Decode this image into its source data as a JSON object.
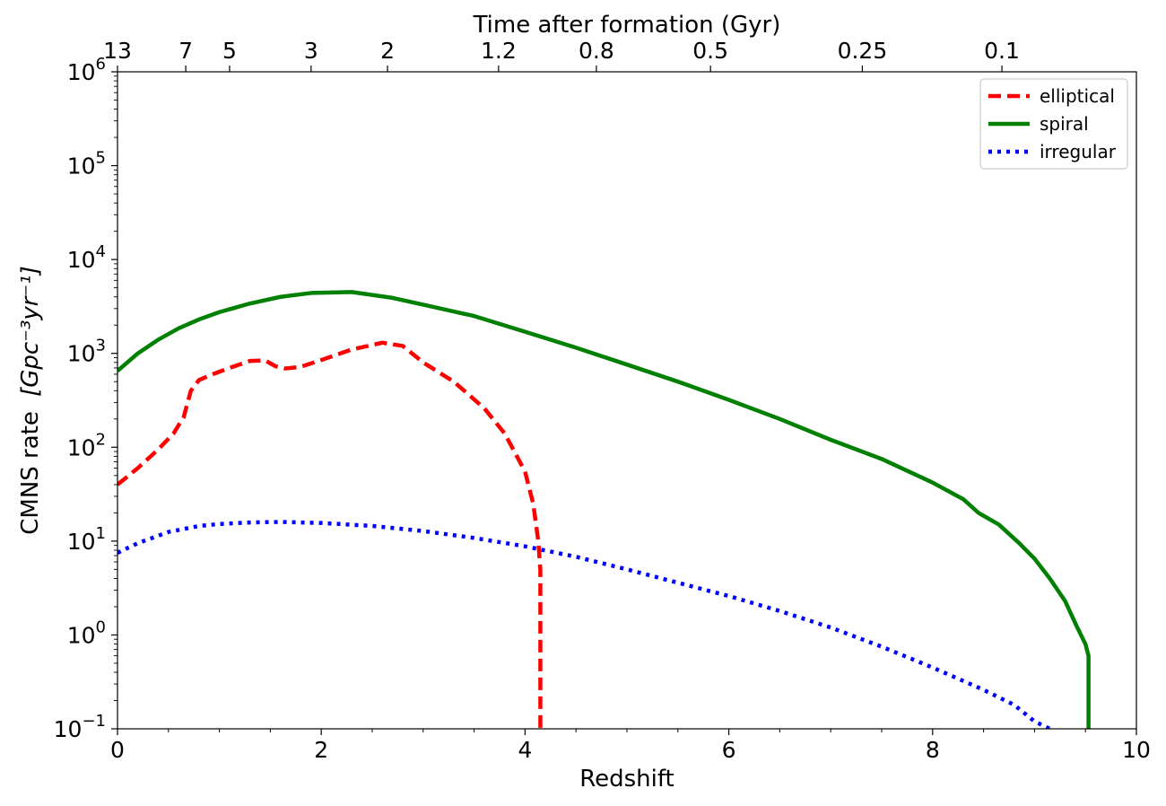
{
  "chart_data": {
    "type": "line",
    "title": "",
    "xlabel": "Redshift",
    "ylabel_prefix": "CMNS rate",
    "ylabel_units": "[Gpc⁻³yr⁻¹]",
    "xlim": [
      0,
      10
    ],
    "ylim_log10": [
      -1,
      6
    ],
    "y_scale": "log",
    "x_ticks": [
      {
        "value": 0,
        "label": "0"
      },
      {
        "value": 2,
        "label": "2"
      },
      {
        "value": 4,
        "label": "4"
      },
      {
        "value": 6,
        "label": "6"
      },
      {
        "value": 8,
        "label": "8"
      },
      {
        "value": 10,
        "label": "10"
      }
    ],
    "y_ticks": [
      {
        "exp": -1,
        "base": "10",
        "power": "−1"
      },
      {
        "exp": 0,
        "base": "10",
        "power": "0"
      },
      {
        "exp": 1,
        "base": "10",
        "power": "1"
      },
      {
        "exp": 2,
        "base": "10",
        "power": "2"
      },
      {
        "exp": 3,
        "base": "10",
        "power": "3"
      },
      {
        "exp": 4,
        "base": "10",
        "power": "4"
      },
      {
        "exp": 5,
        "base": "10",
        "power": "5"
      },
      {
        "exp": 6,
        "base": "10",
        "power": "6"
      }
    ],
    "top_axis": {
      "label": "Time after formation (Gyr)",
      "ticks": [
        {
          "z": 0.0,
          "label": "13"
        },
        {
          "z": 0.67,
          "label": "7"
        },
        {
          "z": 1.1,
          "label": "5"
        },
        {
          "z": 1.9,
          "label": "3"
        },
        {
          "z": 2.65,
          "label": "2"
        },
        {
          "z": 3.74,
          "label": "1.2"
        },
        {
          "z": 4.7,
          "label": "0.8"
        },
        {
          "z": 5.82,
          "label": "0.5"
        },
        {
          "z": 7.31,
          "label": "0.25"
        },
        {
          "z": 8.68,
          "label": "0.1"
        }
      ]
    },
    "legend": {
      "position": "top-right",
      "entries": [
        "elliptical",
        "spiral",
        "irregular"
      ]
    },
    "series": [
      {
        "name": "elliptical",
        "color": "#ff0000",
        "style": "dashed",
        "x": [
          0,
          0.2,
          0.4,
          0.55,
          0.65,
          0.72,
          0.8,
          0.9,
          1.1,
          1.3,
          1.45,
          1.55,
          1.65,
          1.8,
          2.0,
          2.3,
          2.6,
          2.8,
          3.0,
          3.3,
          3.6,
          3.8,
          4.0,
          4.08,
          4.13,
          4.15,
          4.15
        ],
        "y": [
          40,
          60,
          95,
          140,
          210,
          400,
          520,
          580,
          700,
          830,
          840,
          730,
          690,
          720,
          850,
          1100,
          1300,
          1200,
          800,
          500,
          260,
          140,
          55,
          25,
          10,
          5,
          0.1
        ]
      },
      {
        "name": "spiral",
        "color": "#008000",
        "style": "solid",
        "x": [
          0,
          0.2,
          0.4,
          0.6,
          0.8,
          1.0,
          1.3,
          1.6,
          1.9,
          2.3,
          2.7,
          3.0,
          3.5,
          4.0,
          4.5,
          5.0,
          5.5,
          6.0,
          6.5,
          7.0,
          7.5,
          8.0,
          8.3,
          8.45,
          8.65,
          8.85,
          9.0,
          9.15,
          9.3,
          9.42,
          9.5,
          9.53,
          9.53
        ],
        "y": [
          650,
          1000,
          1400,
          1850,
          2300,
          2750,
          3400,
          4000,
          4400,
          4500,
          3900,
          3300,
          2500,
          1700,
          1150,
          760,
          500,
          320,
          200,
          120,
          75,
          42,
          28,
          20,
          15,
          9.5,
          6.5,
          4,
          2.3,
          1.2,
          0.8,
          0.6,
          0.1
        ]
      },
      {
        "name": "irregular",
        "color": "#0000ff",
        "style": "dotted",
        "x": [
          0,
          0.2,
          0.5,
          0.8,
          1.0,
          1.3,
          1.6,
          2.0,
          2.5,
          3.0,
          3.5,
          4.0,
          4.5,
          5.0,
          5.5,
          6.0,
          6.5,
          7.0,
          7.5,
          8.0,
          8.5,
          8.8,
          9.0,
          9.15
        ],
        "y": [
          7.5,
          9.5,
          12.5,
          14.5,
          15.2,
          15.8,
          16.0,
          15.6,
          14.5,
          12.8,
          10.8,
          8.8,
          6.8,
          5.0,
          3.6,
          2.6,
          1.8,
          1.2,
          0.75,
          0.45,
          0.26,
          0.18,
          0.12,
          0.1
        ]
      }
    ]
  }
}
